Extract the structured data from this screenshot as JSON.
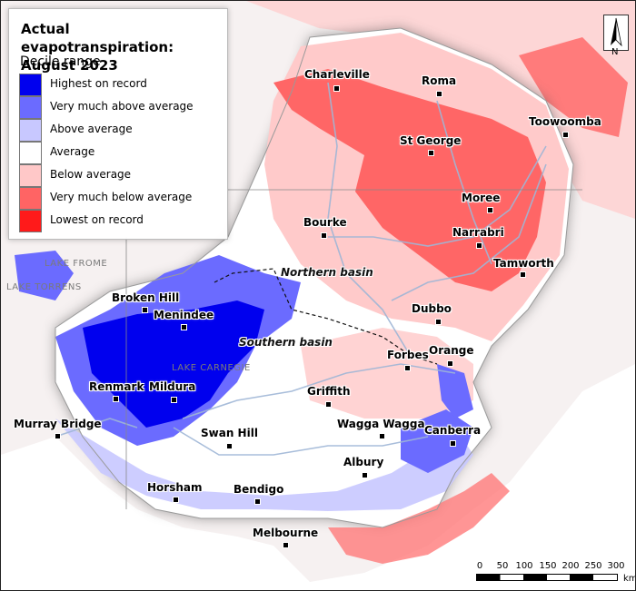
{
  "map": {
    "title": "Actual evapotranspiration: August 2023",
    "subtitle": "Decile range",
    "legend": [
      {
        "label": "Highest on record",
        "color": "#0000ee"
      },
      {
        "label": "Very much above average",
        "color": "#6b6bff"
      },
      {
        "label": "Above average",
        "color": "#c8c8ff"
      },
      {
        "label": "Average",
        "color": "#ffffff"
      },
      {
        "label": "Below average",
        "color": "#ffc8c8"
      },
      {
        "label": "Very much below average",
        "color": "#ff6464"
      },
      {
        "label": "Lowest on record",
        "color": "#ff1a1a"
      }
    ],
    "towns": [
      {
        "name": "Charleville"
      },
      {
        "name": "Roma"
      },
      {
        "name": "Toowoomba"
      },
      {
        "name": "St George"
      },
      {
        "name": "Moree"
      },
      {
        "name": "Bourke"
      },
      {
        "name": "Narrabri"
      },
      {
        "name": "Tamworth"
      },
      {
        "name": "Broken Hill"
      },
      {
        "name": "Menindee"
      },
      {
        "name": "Dubbo"
      },
      {
        "name": "Forbes"
      },
      {
        "name": "Orange"
      },
      {
        "name": "Renmark"
      },
      {
        "name": "Mildura"
      },
      {
        "name": "Griffith"
      },
      {
        "name": "Murray Bridge"
      },
      {
        "name": "Wagga Wagga"
      },
      {
        "name": "Canberra"
      },
      {
        "name": "Swan Hill"
      },
      {
        "name": "Albury"
      },
      {
        "name": "Horsham"
      },
      {
        "name": "Bendigo"
      },
      {
        "name": "Melbourne"
      }
    ],
    "basins": [
      "Northern basin",
      "Southern basin"
    ],
    "background_labels": [
      "LAKE FROME",
      "LAKE TORRENS",
      "LAKE CARNEGIE"
    ],
    "north_label": "N",
    "scale": {
      "ticks": [
        "0",
        "50",
        "100",
        "150",
        "200",
        "250",
        "300"
      ],
      "unit": "km"
    }
  }
}
